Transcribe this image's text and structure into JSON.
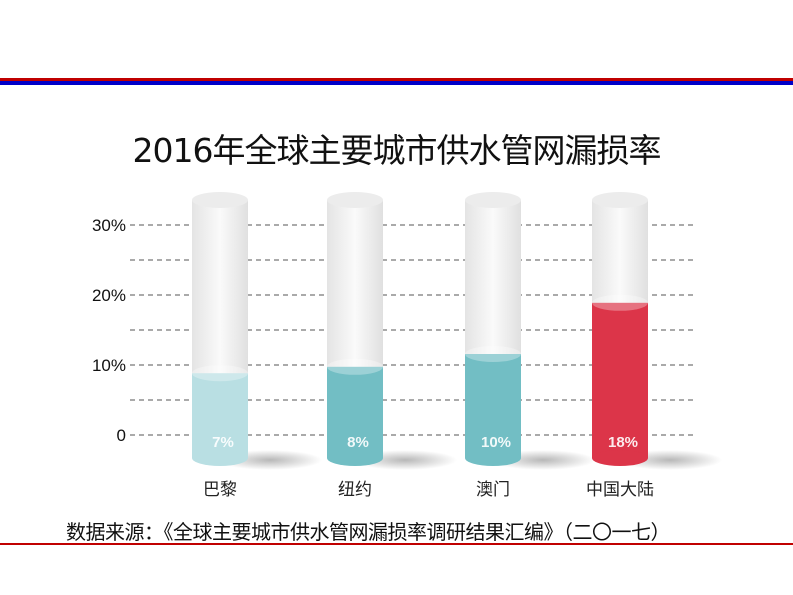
{
  "colors": {
    "top_red": "#c00000",
    "top_blue": "#0000c8",
    "bottom_red": "#c00000",
    "light": "#b9dfe3",
    "teal": "#72bec4",
    "red": "#dc3549"
  },
  "chart_data": {
    "type": "bar",
    "title": "2016年全球主要城市供水管网漏损率",
    "categories": [
      "巴黎",
      "纽约",
      "澳门",
      "中国大陆"
    ],
    "values": [
      7,
      8,
      10,
      18
    ],
    "data_labels": [
      "7%",
      "8%",
      "10%",
      "18%"
    ],
    "bar_colors": [
      "#b9dfe3",
      "#72bec4",
      "#72bec4",
      "#dc3549"
    ],
    "ylabel": "",
    "xlabel": "",
    "ylim": [
      0,
      30
    ],
    "yticks": [
      0,
      10,
      20,
      30
    ],
    "ytick_labels": [
      "0",
      "10%",
      "20%",
      "30%"
    ],
    "grid": true
  },
  "source": "数据来源：《全球主要城市供水管网漏损率调研结果汇编》（二〇一七）"
}
